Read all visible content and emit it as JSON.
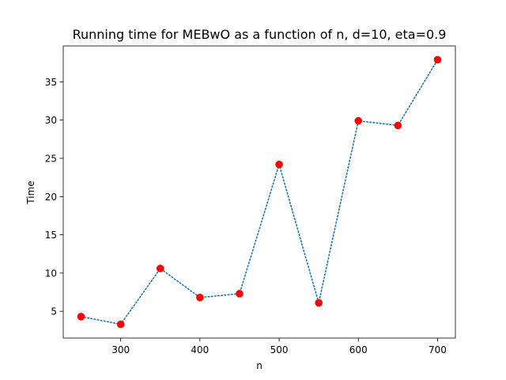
{
  "chart_data": {
    "type": "line",
    "title": "Running time for MEBwO as a function of n, d=10, eta=0.9",
    "xlabel": "n",
    "ylabel": "Time",
    "xlim": [
      227.5,
      722.5
    ],
    "ylim": [
      1.5,
      39.7
    ],
    "xticks": [
      300,
      400,
      500,
      600,
      700
    ],
    "yticks": [
      5,
      10,
      15,
      20,
      25,
      30,
      35
    ],
    "grid": false,
    "legend": "none",
    "series": [
      {
        "x": [
          250,
          300,
          350,
          400,
          450,
          500,
          550,
          600,
          650,
          700
        ],
        "y": [
          4.3,
          3.3,
          10.6,
          6.8,
          7.3,
          24.2,
          6.1,
          29.9,
          29.3,
          37.9
        ],
        "line_color": "#1f77b4",
        "line_style": "dotted",
        "marker_color": "#ff0000"
      }
    ]
  }
}
